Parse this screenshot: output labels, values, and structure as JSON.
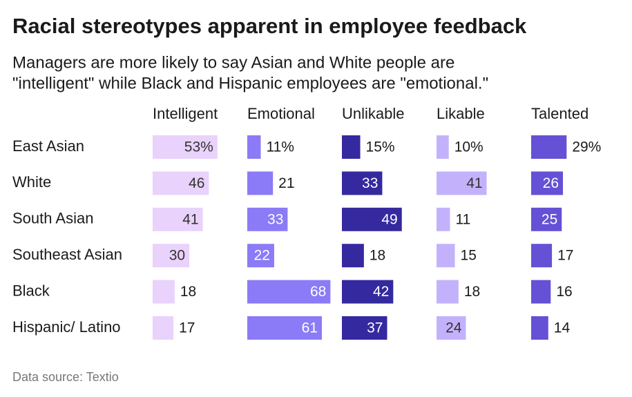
{
  "chart_data": {
    "type": "bar",
    "title": "Racial stereotypes apparent in employee feedback",
    "subtitle": [
      "Managers are more likely to say Asian and White people are",
      "\"intelligent\" while Black and Hispanic employees are \"emotional.\""
    ],
    "source": "Data source: Textio",
    "categories": [
      "East Asian",
      "White",
      "South Asian",
      "Southeast Asian",
      "Black",
      "Hispanic/ Latino"
    ],
    "series": [
      {
        "name": "Intelligent",
        "color": "#e9d2fb",
        "values": [
          53,
          46,
          41,
          30,
          18,
          17
        ],
        "value_labels": [
          "53%",
          "46",
          "41",
          "30",
          "18",
          "17"
        ]
      },
      {
        "name": "Emotional",
        "color": "#8b7bf6",
        "values": [
          11,
          21,
          33,
          22,
          68,
          61
        ],
        "value_labels": [
          "11%",
          "21",
          "33",
          "22",
          "68",
          "61"
        ]
      },
      {
        "name": "Unlikable",
        "color": "#35299f",
        "values": [
          15,
          33,
          49,
          18,
          42,
          37
        ],
        "value_labels": [
          "15%",
          "33",
          "49",
          "18",
          "42",
          "37"
        ]
      },
      {
        "name": "Likable",
        "color": "#c3b2fb",
        "values": [
          10,
          41,
          11,
          15,
          18,
          24
        ],
        "value_labels": [
          "10%",
          "41",
          "11",
          "15",
          "18",
          "24"
        ]
      },
      {
        "name": "Talented",
        "color": "#6451d5",
        "values": [
          29,
          26,
          25,
          17,
          16,
          14
        ],
        "value_labels": [
          "29%",
          "26",
          "25",
          "17",
          "16",
          "14"
        ]
      }
    ]
  }
}
